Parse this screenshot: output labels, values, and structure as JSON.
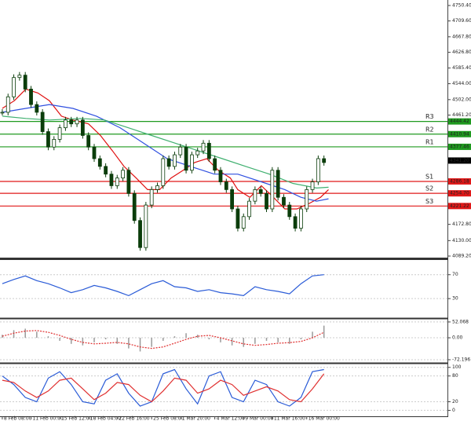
{
  "chart_data": [
    {
      "type": "candlestick",
      "x": [
        0,
        1,
        2,
        3,
        4,
        5,
        6,
        7,
        8,
        9,
        10,
        11,
        12,
        13,
        14,
        15,
        16,
        17,
        18,
        19,
        20,
        21,
        22,
        23,
        24,
        25,
        26,
        27,
        28,
        29,
        30,
        31,
        32,
        33,
        34,
        35,
        36,
        37,
        38,
        39,
        40,
        41,
        42,
        43,
        44,
        45,
        46,
        47,
        48,
        49,
        50,
        51,
        52,
        53,
        54,
        55,
        56
      ],
      "close": [
        4468.6,
        4509.4,
        4560.4,
        4566.6,
        4529.8,
        4489,
        4468.6,
        4417.6,
        4376.8,
        4397.2,
        4427.8,
        4448.2,
        4438,
        4448.2,
        4407.4,
        4376.8,
        4346.2,
        4325.8,
        4305.4,
        4274.8,
        4295.2,
        4315.6,
        4254.4,
        4183,
        4111.6,
        4223.8,
        4264.6,
        4274.8,
        4346.2,
        4325.8,
        4356.4,
        4376.8,
        4315.6,
        4356.4,
        4366.6,
        4387,
        4346.2,
        4315.6,
        4285,
        4264.6,
        4213.6,
        4162.6,
        4193.2,
        4234,
        4264.6,
        4254.4,
        4213.6,
        4315.6,
        4244.2,
        4223.8,
        4193.2,
        4162.6,
        4213.6,
        4264.6,
        4285,
        4346.2,
        4336
      ],
      "color": "#0b3d0b",
      "xlim": [
        -0.4,
        77.5
      ],
      "ylim": [
        4089.2,
        4750.4
      ],
      "yticks": [
        {
          "value": 4750.4,
          "label": "4750.40"
        },
        {
          "value": 4709.6,
          "label": "4709.60"
        },
        {
          "value": 4667.8,
          "label": "4667.80"
        },
        {
          "value": 4626.8,
          "label": "4626.80"
        },
        {
          "value": 4585.4,
          "label": "4585.40"
        },
        {
          "value": 4544,
          "label": "4544.00"
        },
        {
          "value": 4502,
          "label": "4502.00"
        },
        {
          "value": 4461.2,
          "label": "4461.20"
        },
        {
          "value": 4172.8,
          "label": "4172.80"
        },
        {
          "value": 4130,
          "label": "4130.00"
        },
        {
          "value": 4089.2,
          "label": "4089.20"
        }
      ],
      "current": {
        "value": 4341.2,
        "label": "4341.20"
      },
      "levels": {
        "names": [
          "R3",
          "R2",
          "R1",
          "S1",
          "S2",
          "S3"
        ],
        "values": [
          4444.42,
          4410.94,
          4377.46,
          4286.18,
          4254.7,
          4221.22
        ],
        "value_labels": [
          "4444.42",
          "4410.94",
          "4377.46",
          "4286.18",
          "4254.70",
          "4221.22"
        ],
        "colors": [
          "#1f9a1f",
          "#1f9a1f",
          "#1f9a1f",
          "#e01818",
          "#e01818",
          "#e01818"
        ]
      },
      "series": [
        {
          "color": "#e01010",
          "x": [
            0,
            2.1,
            4.1,
            6.2,
            8.2,
            10.3,
            12.3,
            15,
            17.1,
            19.2,
            21.2,
            23.3,
            25.3,
            27.4,
            29.4,
            31.5,
            33.5,
            35.6,
            37.6,
            39.7,
            41,
            43.1,
            45.1,
            47.2,
            49.2,
            51.3,
            53.4,
            55.4,
            56.8
          ],
          "values": [
            4478.8,
            4499.2,
            4529.8,
            4519.6,
            4499.2,
            4458.4,
            4448.2,
            4438,
            4407.4,
            4366.6,
            4325.8,
            4295.2,
            4264.6,
            4264.6,
            4295.2,
            4315.6,
            4336,
            4346.2,
            4315.6,
            4295.2,
            4264.6,
            4244.2,
            4274.8,
            4244.2,
            4213.6,
            4213.6,
            4227.9,
            4244.2,
            4264.6
          ]
        },
        {
          "color": "#3050e0",
          "x": [
            0,
            4.1,
            8.2,
            12.3,
            16.4,
            20.5,
            24.6,
            28.7,
            32.8,
            36.9,
            41,
            45.1,
            49.2,
            52,
            54.7,
            56.8
          ],
          "values": [
            4468.6,
            4478.8,
            4489,
            4478.8,
            4458.4,
            4427.8,
            4387,
            4346.2,
            4325.8,
            4305.4,
            4305.4,
            4285,
            4264.6,
            4244.2,
            4234,
            4240.2
          ]
        },
        {
          "color": "#40b070",
          "x": [
            0,
            4.1,
            8.2,
            13.7,
            17.8,
            21.9,
            26,
            30.1,
            34.2,
            38.3,
            42.4,
            46.5,
            50.6,
            54.7,
            56.8
          ],
          "values": [
            4458.4,
            4452.3,
            4448.2,
            4452.3,
            4448.2,
            4427.8,
            4407.4,
            4387,
            4366.6,
            4346.2,
            4325.8,
            4305.4,
            4281,
            4268.7,
            4270.8
          ]
        }
      ]
    },
    {
      "type": "line",
      "x": [
        0,
        2,
        4,
        6,
        8,
        10,
        12,
        14,
        16,
        18,
        20,
        22,
        24,
        26,
        28,
        30,
        32,
        34,
        36,
        38,
        40,
        42,
        44,
        46,
        48,
        50,
        52,
        54,
        56
      ],
      "xlim": [
        -0.4,
        77.5
      ],
      "ylim": [
        0,
        92
      ],
      "yticks": [
        30,
        70
      ],
      "series": [
        {
          "color": "#2a5bd7",
          "values": [
            55,
            62,
            68,
            60,
            55,
            48,
            40,
            45,
            52,
            48,
            42,
            35,
            45,
            55,
            60,
            50,
            48,
            42,
            45,
            40,
            38,
            35,
            50,
            45,
            42,
            38,
            55,
            68,
            70
          ]
        }
      ]
    },
    {
      "type": "bar",
      "x": [
        0,
        2,
        4,
        6,
        8,
        10,
        12,
        14,
        16,
        18,
        20,
        22,
        24,
        26,
        28,
        30,
        32,
        34,
        36,
        38,
        40,
        42,
        44,
        46,
        48,
        50,
        52,
        54,
        56
      ],
      "values": [
        10,
        25,
        30,
        20,
        5,
        -10,
        -20,
        -25,
        -15,
        -5,
        -20,
        -35,
        -45,
        -30,
        -10,
        5,
        15,
        10,
        -5,
        -15,
        -25,
        -30,
        -20,
        -10,
        -15,
        -20,
        -5,
        20,
        40
      ],
      "color": "#9a9a9a",
      "xlim": [
        -0.4,
        77.5
      ],
      "ylim": [
        -80,
        57
      ],
      "yticks": [
        52.068,
        {
          "value": 0,
          "label": "0.00"
        },
        -72.196
      ],
      "series": [
        {
          "color": "#e03030",
          "dash": true,
          "values": [
            5,
            15,
            22,
            24,
            18,
            8,
            -5,
            -15,
            -20,
            -18,
            -15,
            -20,
            -30,
            -35,
            -30,
            -18,
            -5,
            5,
            8,
            0,
            -10,
            -20,
            -25,
            -22,
            -18,
            -16,
            -12,
            0,
            18
          ]
        }
      ]
    },
    {
      "type": "line",
      "x": [
        0,
        2,
        4,
        6,
        8,
        10,
        12,
        14,
        16,
        18,
        20,
        22,
        24,
        26,
        28,
        30,
        32,
        34,
        36,
        38,
        40,
        42,
        44,
        46,
        48,
        50,
        52,
        54,
        56
      ],
      "xlim": [
        -0.4,
        77.5
      ],
      "ylim": [
        -12,
        105
      ],
      "yticks": [
        0,
        20,
        80,
        100
      ],
      "xticks": [
        {
          "value": 0,
          "label": "8 Feb 08:00"
        },
        {
          "value": 5,
          "label": "11 Feb 00:00"
        },
        {
          "value": 10,
          "label": "15 Feb 12:00"
        },
        {
          "value": 15,
          "label": "18 Feb 04:00"
        },
        {
          "value": 20,
          "label": "22 Feb 16:00"
        },
        {
          "value": 26,
          "label": "25 Feb 08:00"
        },
        {
          "value": 31,
          "label": "1 Mar 20:00"
        },
        {
          "value": 37,
          "label": "4 Mar 12:00"
        },
        {
          "value": 42,
          "label": "9 Mar 00:00"
        },
        {
          "value": 47,
          "label": "11 Mar 16:00"
        },
        {
          "value": 53,
          "label": "16 Mar 00:00"
        }
      ],
      "series": [
        {
          "color": "#2a5bd7",
          "values": [
            80,
            60,
            30,
            20,
            75,
            90,
            60,
            20,
            15,
            70,
            85,
            40,
            10,
            20,
            85,
            95,
            50,
            15,
            80,
            90,
            30,
            20,
            70,
            60,
            20,
            10,
            30,
            90,
            95
          ]
        },
        {
          "color": "#e03030",
          "values": [
            70,
            65,
            45,
            30,
            45,
            70,
            75,
            50,
            25,
            40,
            65,
            60,
            35,
            20,
            45,
            75,
            70,
            40,
            50,
            70,
            60,
            35,
            45,
            55,
            45,
            25,
            20,
            50,
            85
          ]
        }
      ]
    }
  ]
}
